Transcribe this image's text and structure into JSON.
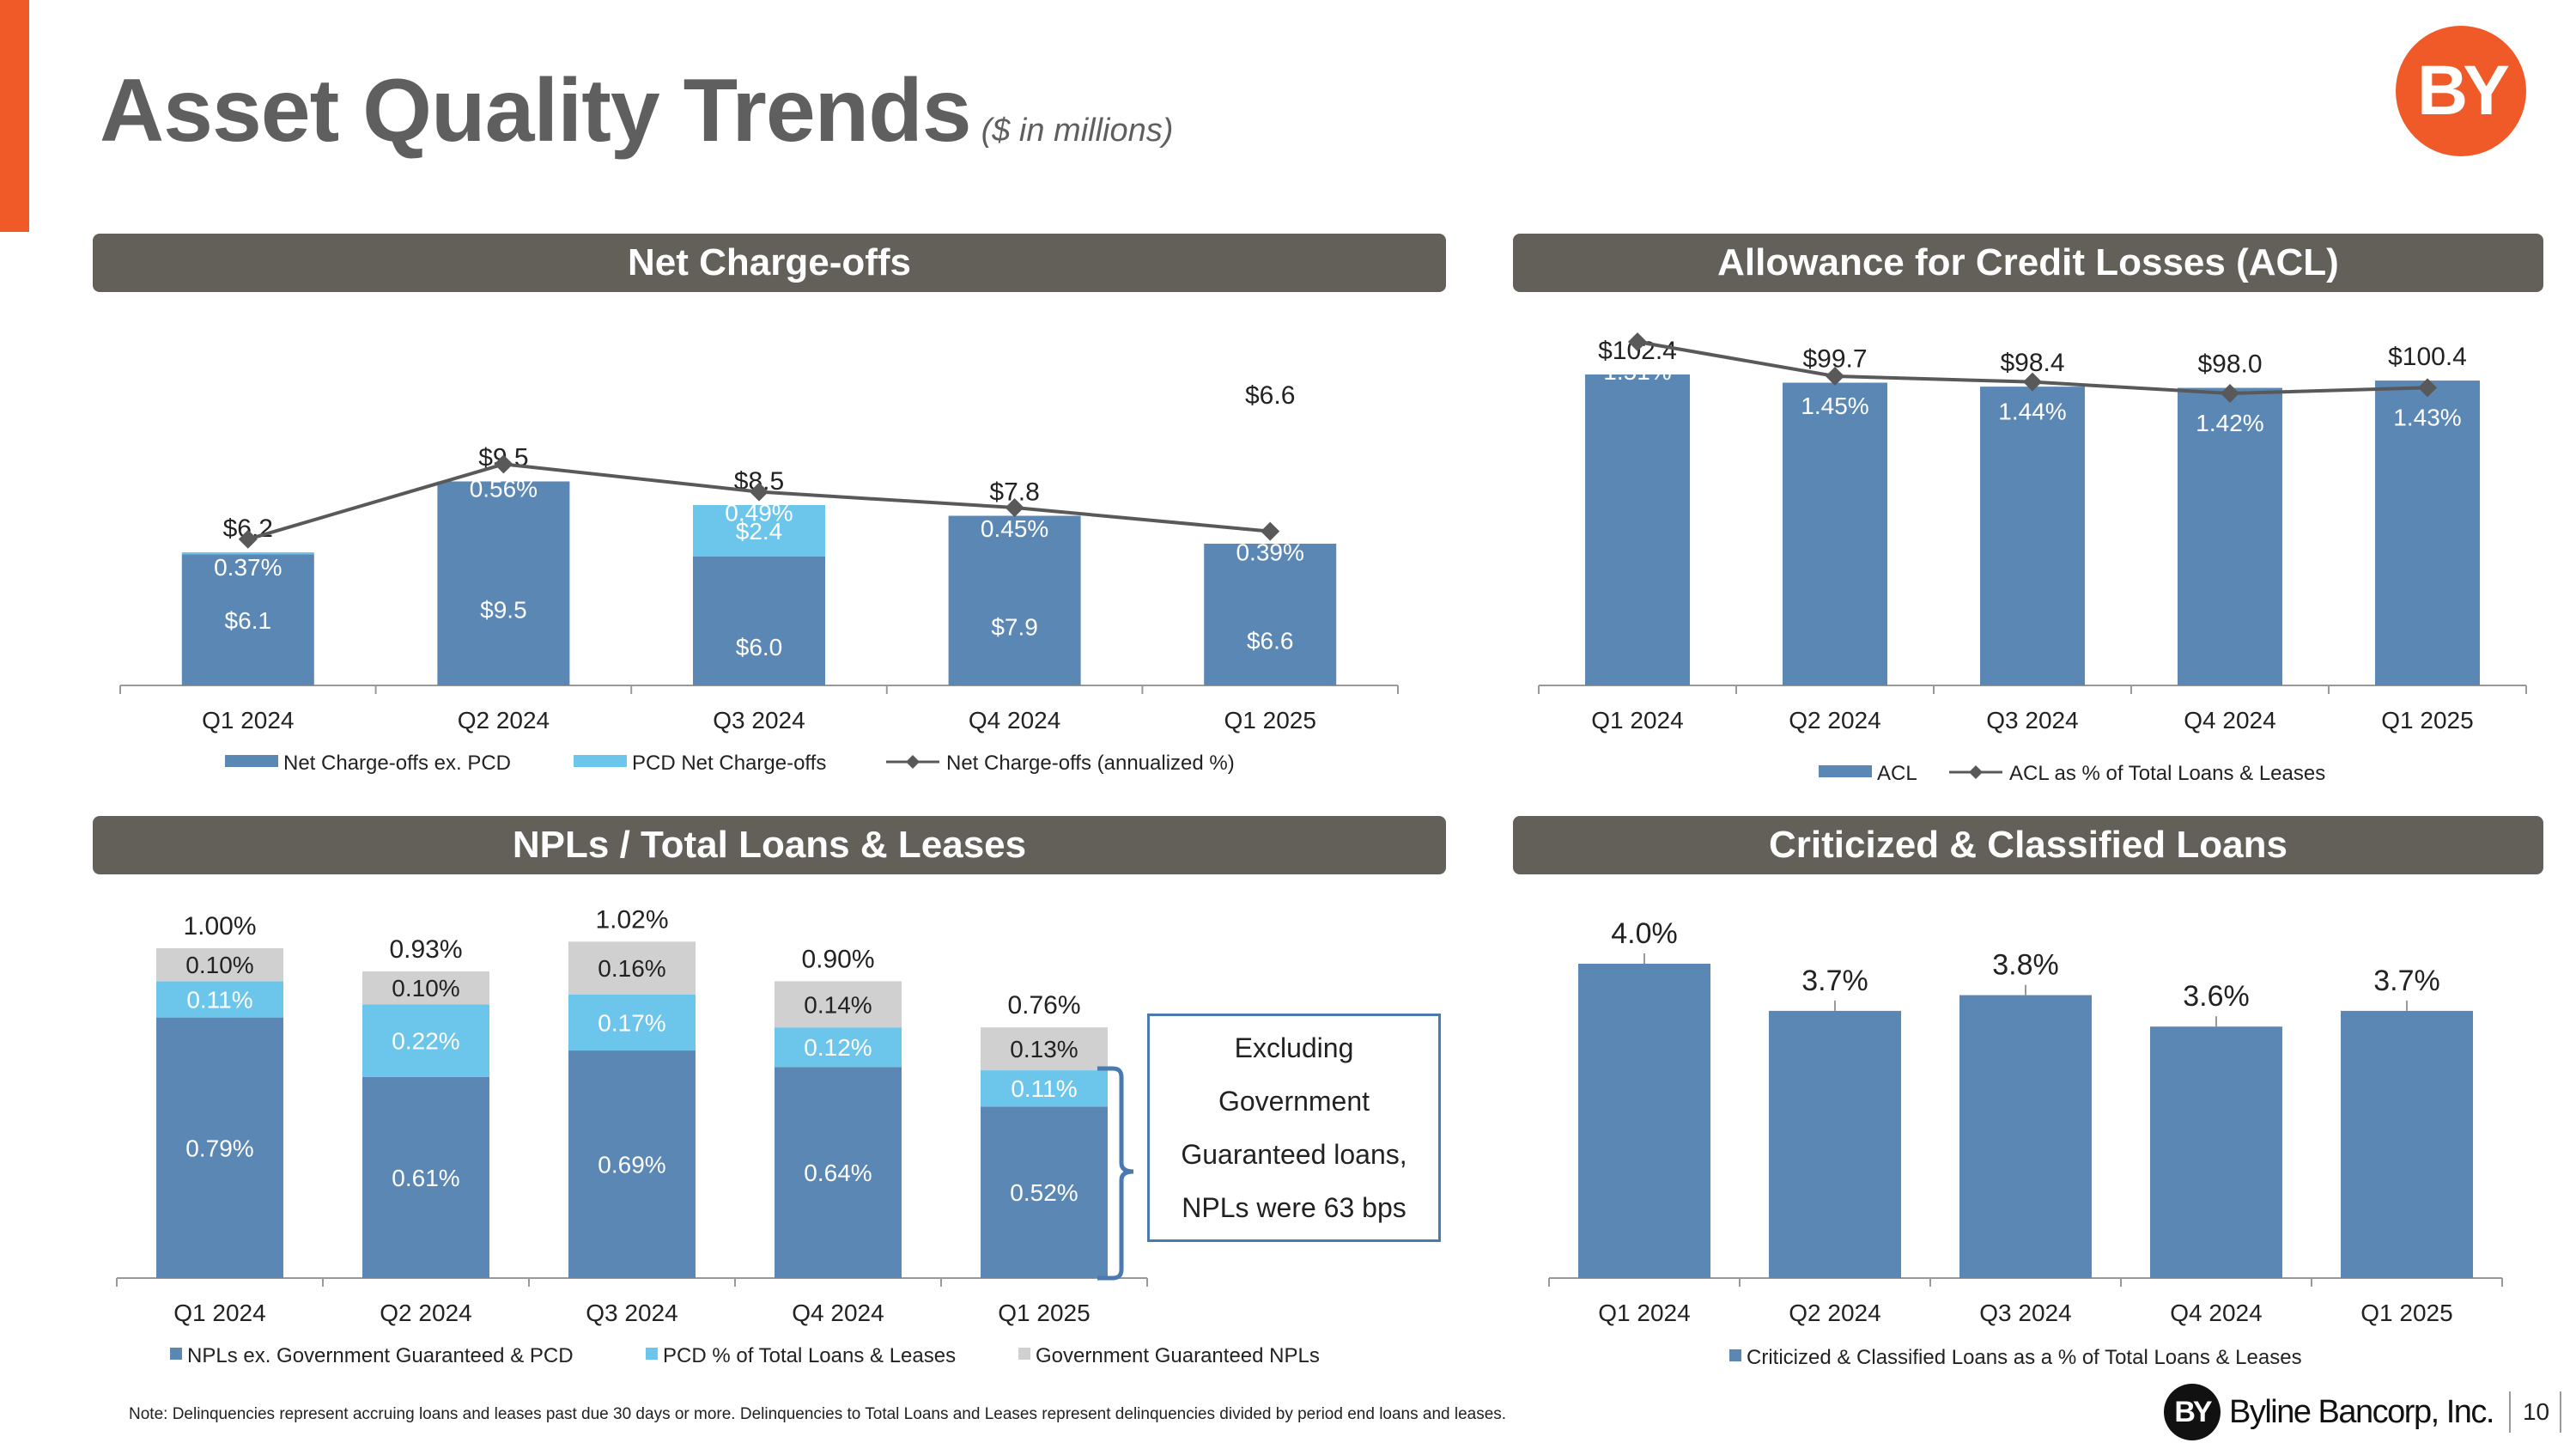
{
  "header": {
    "title": "Asset Quality Trends",
    "subtitle": "($ in millions)",
    "logo_text": "BY"
  },
  "colors": {
    "accent": "#f05a28",
    "dark_blue": "#5b87b5",
    "light_blue": "#6cc5ea",
    "gray": "#d0d0d0",
    "line": "#595959",
    "header_bg": "#635f59"
  },
  "panels": {
    "net_chargeoffs": "Net Charge-offs",
    "acl": "Allowance for Credit Losses (ACL)",
    "npls": "NPLs / Total Loans & Leases",
    "criticized": "Criticized & Classified Loans"
  },
  "callout": {
    "lines": [
      "Excluding",
      "Government",
      "Guaranteed loans,",
      "NPLs were 63 bps"
    ]
  },
  "footnote": "Note: Delinquencies represent accruing loans and leases past due 30 days or more. Delinquencies to Total Loans and Leases represent delinquencies divided by period end loans and leases.",
  "footer": {
    "brand_mark": "BY",
    "brand_name": "Byline Bancorp, Inc.",
    "page_number": "10"
  },
  "chart_data": [
    {
      "id": "nco",
      "type": "bar",
      "title": "Net Charge-offs",
      "categories": [
        "Q1 2024",
        "Q2 2024",
        "Q3 2024",
        "Q4 2024",
        "Q1 2025"
      ],
      "ylim": [
        0,
        12
      ],
      "line_ylim": [
        0,
        1.0
      ],
      "series": [
        {
          "name": "Net Charge-offs ex. PCD",
          "values": [
            6.1,
            9.5,
            6.0,
            7.9,
            6.6
          ],
          "labels": [
            "$6.1",
            "$9.5",
            "$6.0",
            "$7.9",
            "$6.6"
          ]
        },
        {
          "name": "PCD Net Charge-offs",
          "values": [
            0.1,
            0,
            2.4,
            0,
            0
          ],
          "labels": [
            "",
            "",
            "$2.4",
            "",
            ""
          ]
        },
        {
          "name": "Net Charge-offs (annualized %)",
          "values": [
            0.37,
            0.56,
            0.49,
            0.45,
            0.39
          ],
          "labels": [
            "0.37%",
            "0.56%",
            "0.49%",
            "0.45%",
            "0.39%"
          ]
        }
      ],
      "totals": [
        "$6.2",
        "$9.5",
        "$8.5",
        "$7.8",
        "$6.6"
      ]
    },
    {
      "id": "acl",
      "type": "bar",
      "title": "Allowance for Credit Losses (ACL)",
      "categories": [
        "Q1 2024",
        "Q2 2024",
        "Q3 2024",
        "Q4 2024",
        "Q1 2025"
      ],
      "ylim": [
        0,
        120
      ],
      "line_ylim": [
        0,
        2.0
      ],
      "series": [
        {
          "name": "ACL",
          "values": [
            102.4,
            99.7,
            98.4,
            98.0,
            100.4
          ],
          "labels": [
            "$102.4",
            "$99.7",
            "$98.4",
            "$98.0",
            "$100.4"
          ]
        },
        {
          "name": "ACL as % of Total Loans & Leases",
          "values": [
            1.51,
            1.45,
            1.44,
            1.42,
            1.43
          ],
          "labels": [
            "1.51%",
            "1.45%",
            "1.44%",
            "1.42%",
            "1.43%"
          ]
        }
      ]
    },
    {
      "id": "npl",
      "type": "bar",
      "title": "NPLs / Total Loans & Leases",
      "categories": [
        "Q1 2024",
        "Q2 2024",
        "Q3 2024",
        "Q4 2024",
        "Q1 2025"
      ],
      "ylim": [
        0,
        1.2
      ],
      "series": [
        {
          "name": "NPLs ex. Government Guaranteed & PCD",
          "values": [
            0.79,
            0.61,
            0.69,
            0.64,
            0.52
          ],
          "labels": [
            "0.79%",
            "0.61%",
            "0.69%",
            "0.64%",
            "0.52%"
          ]
        },
        {
          "name": "PCD % of Total Loans & Leases",
          "values": [
            0.11,
            0.22,
            0.17,
            0.12,
            0.11
          ],
          "labels": [
            "0.11%",
            "0.22%",
            "0.17%",
            "0.12%",
            "0.11%"
          ]
        },
        {
          "name": "Government Guaranteed NPLs",
          "values": [
            0.1,
            0.1,
            0.16,
            0.14,
            0.13
          ],
          "labels": [
            "0.10%",
            "0.10%",
            "0.16%",
            "0.14%",
            "0.13%"
          ]
        }
      ],
      "totals": [
        "1.00%",
        "0.93%",
        "1.02%",
        "0.90%",
        "0.76%"
      ]
    },
    {
      "id": "cc",
      "type": "bar",
      "title": "Criticized & Classified Loans",
      "categories": [
        "Q1 2024",
        "Q2 2024",
        "Q3 2024",
        "Q4 2024",
        "Q1 2025"
      ],
      "ylim": [
        0,
        5.0
      ],
      "series": [
        {
          "name": "Criticized & Classified Loans as a % of Total Loans & Leases",
          "values": [
            4.0,
            3.7,
            3.8,
            3.6,
            3.7
          ],
          "labels": [
            "4.0%",
            "3.7%",
            "3.8%",
            "3.6%",
            "3.7%"
          ]
        }
      ]
    }
  ]
}
